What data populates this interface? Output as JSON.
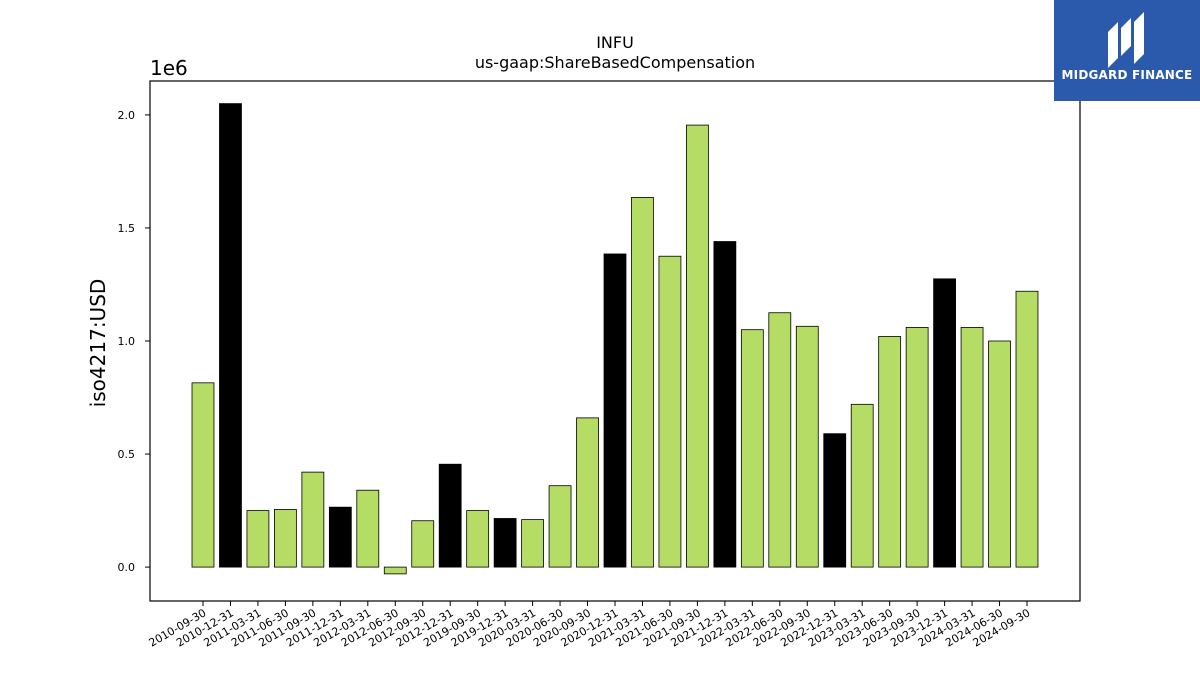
{
  "chart_data": {
    "type": "bar",
    "title": "INFU",
    "subtitle": "us-gaap:ShareBasedCompensation",
    "ylabel": "iso4217:USD",
    "xlabel": "",
    "y_offset_label": "1e6",
    "ylim": [
      -0.15,
      2.15
    ],
    "yticks": [
      0.0,
      0.5,
      1.0,
      1.5,
      2.0
    ],
    "ytick_labels": [
      "0.0",
      "0.5",
      "1.0",
      "1.5",
      "2.0"
    ],
    "grid": false,
    "categories": [
      "2010-09-30",
      "2010-12-31",
      "2011-03-31",
      "2011-06-30",
      "2011-09-30",
      "2011-12-31",
      "2012-03-31",
      "2012-06-30",
      "2012-09-30",
      "2012-12-31",
      "2019-09-30",
      "2019-12-31",
      "2020-03-31",
      "2020-06-30",
      "2020-09-30",
      "2020-12-31",
      "2021-03-31",
      "2021-06-30",
      "2021-09-30",
      "2021-12-31",
      "2022-03-31",
      "2022-06-30",
      "2022-09-30",
      "2022-12-31",
      "2023-03-31",
      "2023-06-30",
      "2023-09-30",
      "2023-12-31",
      "2024-03-31",
      "2024-06-30",
      "2024-09-30"
    ],
    "values": [
      0.815,
      2.05,
      0.25,
      0.255,
      0.42,
      0.265,
      0.34,
      -0.03,
      0.205,
      0.455,
      0.25,
      0.215,
      0.21,
      0.36,
      0.66,
      1.385,
      1.635,
      1.375,
      1.955,
      1.44,
      1.05,
      1.125,
      1.065,
      0.59,
      0.72,
      1.02,
      1.06,
      1.275,
      1.06,
      1.0,
      1.22
    ],
    "bar_colors": [
      "#b5dd66",
      "#000000",
      "#b5dd66",
      "#b5dd66",
      "#b5dd66",
      "#000000",
      "#b5dd66",
      "#b5dd66",
      "#b5dd66",
      "#000000",
      "#b5dd66",
      "#000000",
      "#b5dd66",
      "#b5dd66",
      "#b5dd66",
      "#000000",
      "#b5dd66",
      "#b5dd66",
      "#b5dd66",
      "#000000",
      "#b5dd66",
      "#b5dd66",
      "#b5dd66",
      "#000000",
      "#b5dd66",
      "#b5dd66",
      "#b5dd66",
      "#000000",
      "#b5dd66",
      "#b5dd66",
      "#b5dd66"
    ]
  },
  "logo": {
    "text": "MIDGARD FINANCE",
    "background": "#2b5aad",
    "icon": "midgard-logo-mark"
  }
}
